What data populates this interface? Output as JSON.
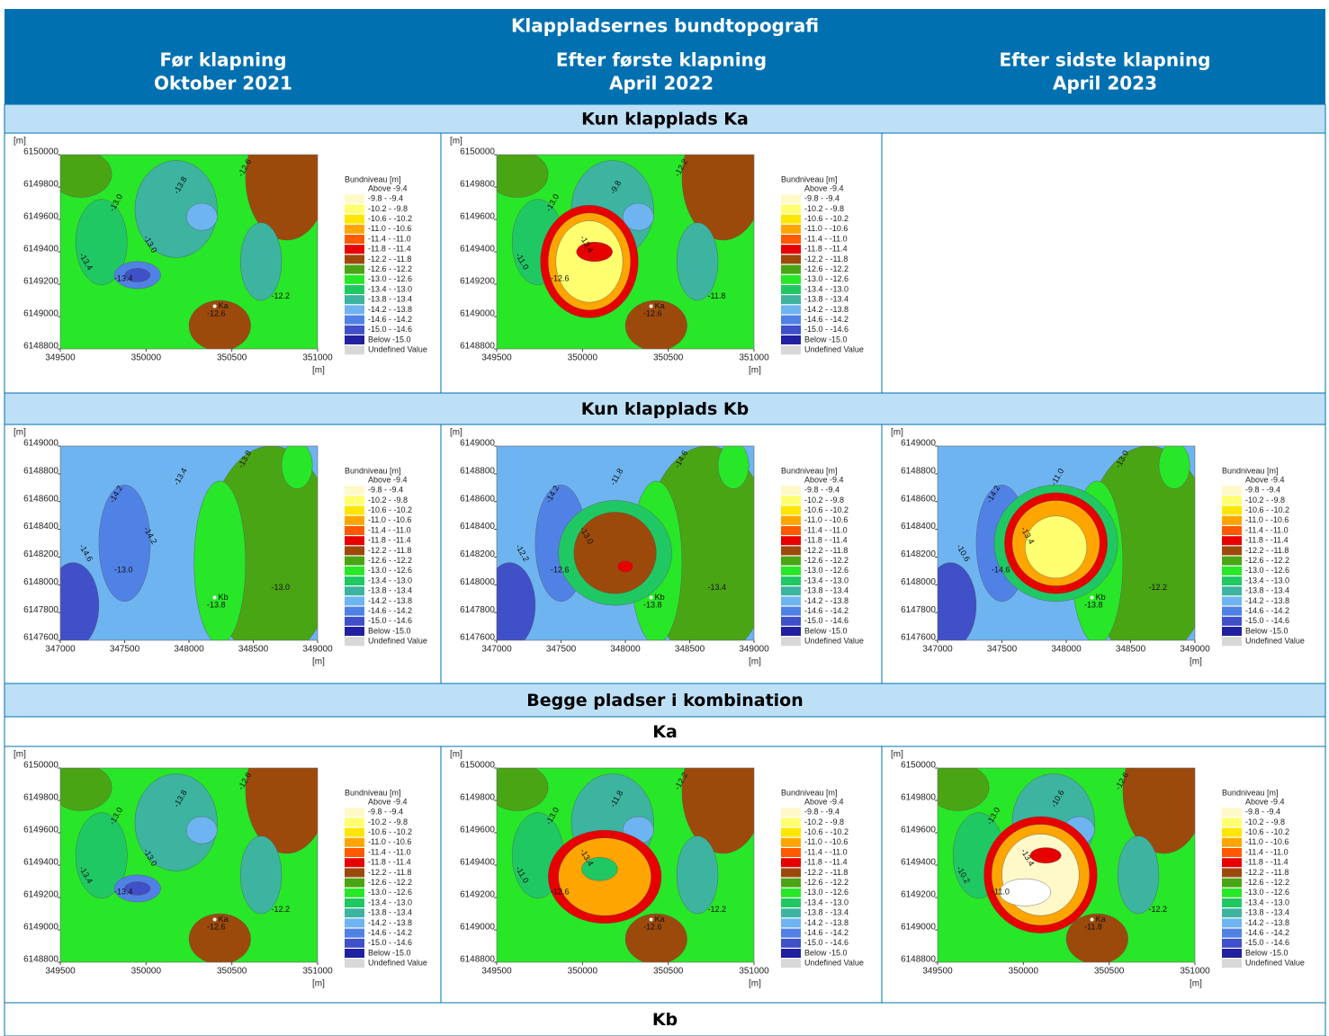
{
  "header": {
    "title": "Klappladsernes bundtopografi",
    "columns": [
      {
        "line1": "Før klapning",
        "line2": "Oktober 2021"
      },
      {
        "line1": "Efter første klapning",
        "line2": "April 2022"
      },
      {
        "line1": "Efter sidste klapning",
        "line2": "April 2023"
      }
    ]
  },
  "axis_unit": "[m]",
  "legend": {
    "title": "Bundniveau [m]",
    "entries": [
      {
        "label": "Above  -9.4",
        "color": "#ffffff"
      },
      {
        "label": "-9.8 -  -9.4",
        "color": "#fff8c8"
      },
      {
        "label": "-10.2 -  -9.8",
        "color": "#ffff70"
      },
      {
        "label": "-10.6 - -10.2",
        "color": "#ffe600"
      },
      {
        "label": "-11.0 - -10.6",
        "color": "#ffa500"
      },
      {
        "label": "-11.4 - -11.0",
        "color": "#ff5a00"
      },
      {
        "label": "-11.8 - -11.4",
        "color": "#e60000"
      },
      {
        "label": "-12.2 - -11.8",
        "color": "#9c4a0c"
      },
      {
        "label": "-12.6 - -12.2",
        "color": "#4aa514"
      },
      {
        "label": "-13.0 - -12.6",
        "color": "#28e628"
      },
      {
        "label": "-13.4 - -13.0",
        "color": "#20c864"
      },
      {
        "label": "-13.8 - -13.4",
        "color": "#3cb4a0"
      },
      {
        "label": "-14.2 - -13.8",
        "color": "#6eb4f0"
      },
      {
        "label": "-14.6 - -14.2",
        "color": "#5082e6"
      },
      {
        "label": "-15.0 - -14.6",
        "color": "#4050c8"
      },
      {
        "label": "Below -15.0",
        "color": "#2020a0"
      },
      {
        "label": "Undefined Value",
        "color": "#d8d8d8"
      }
    ]
  },
  "rows": [
    {
      "kind": "band",
      "title": "Kun klapplads Ka"
    },
    {
      "kind": "maps",
      "xticks": [
        349500,
        350000,
        350500,
        351000
      ],
      "yticks": [
        6148800,
        6149000,
        6149200,
        6149400,
        6149600,
        6149800,
        6150000
      ],
      "maps": [
        {
          "marker": "Ka",
          "contour_labels": [
            "-13.0",
            "-12.6",
            "-13.4",
            "-13.8",
            "-12.2",
            "-13.0",
            "-12.6",
            "-13.4"
          ]
        },
        {
          "marker": "Ka",
          "contour_labels": [
            "-13.0",
            "-12.6",
            "-11.0",
            "-9.8",
            "-11.8",
            "-13.4",
            "-12.2",
            "-12.6"
          ]
        }
      ]
    },
    {
      "kind": "band",
      "title": "Kun klapplads Kb"
    },
    {
      "kind": "maps",
      "xticks": [
        347000,
        347500,
        348000,
        348500,
        349000
      ],
      "yticks": [
        6147600,
        6147800,
        6148000,
        6148200,
        6148400,
        6148600,
        6148800,
        6149000
      ],
      "maps": [
        {
          "marker": "Kb",
          "contour_labels": [
            "-14.2",
            "-13.8",
            "-14.6",
            "-13.4",
            "-13.0",
            "-14.2",
            "-13.8",
            "-13.0"
          ]
        },
        {
          "marker": "Kb",
          "contour_labels": [
            "-14.2",
            "-13.8",
            "-12.2",
            "-11.8",
            "-13.4",
            "-13.0",
            "-14.6",
            "-12.6"
          ]
        },
        {
          "marker": "Kb",
          "contour_labels": [
            "-14.2",
            "-13.8",
            "-10.6",
            "-11.0",
            "-12.2",
            "-13.4",
            "-13.0",
            "-14.6"
          ]
        }
      ]
    },
    {
      "kind": "band",
      "title": "Begge pladser i kombination"
    },
    {
      "kind": "subband",
      "title": "Ka"
    },
    {
      "kind": "maps",
      "xticks": [
        349500,
        350000,
        350500,
        351000
      ],
      "yticks": [
        6148800,
        6149000,
        6149200,
        6149400,
        6149600,
        6149800,
        6150000
      ],
      "maps": [
        {
          "marker": "Ka",
          "contour_labels": [
            "-13.0",
            "-12.6",
            "-13.4",
            "-13.8",
            "-12.2",
            "-13.0",
            "-12.6",
            "-13.4"
          ]
        },
        {
          "marker": "Ka",
          "contour_labels": [
            "-13.0",
            "-12.6",
            "-11.0",
            "-11.8",
            "-12.2",
            "-13.4",
            "-12.2",
            "-12.6"
          ]
        },
        {
          "marker": "Ka",
          "contour_labels": [
            "-13.0",
            "-11.8",
            "-10.2",
            "-10.6",
            "-12.2",
            "-13.4",
            "-12.6",
            "-11.0"
          ]
        }
      ]
    },
    {
      "kind": "subband",
      "title": "Kb"
    }
  ]
}
